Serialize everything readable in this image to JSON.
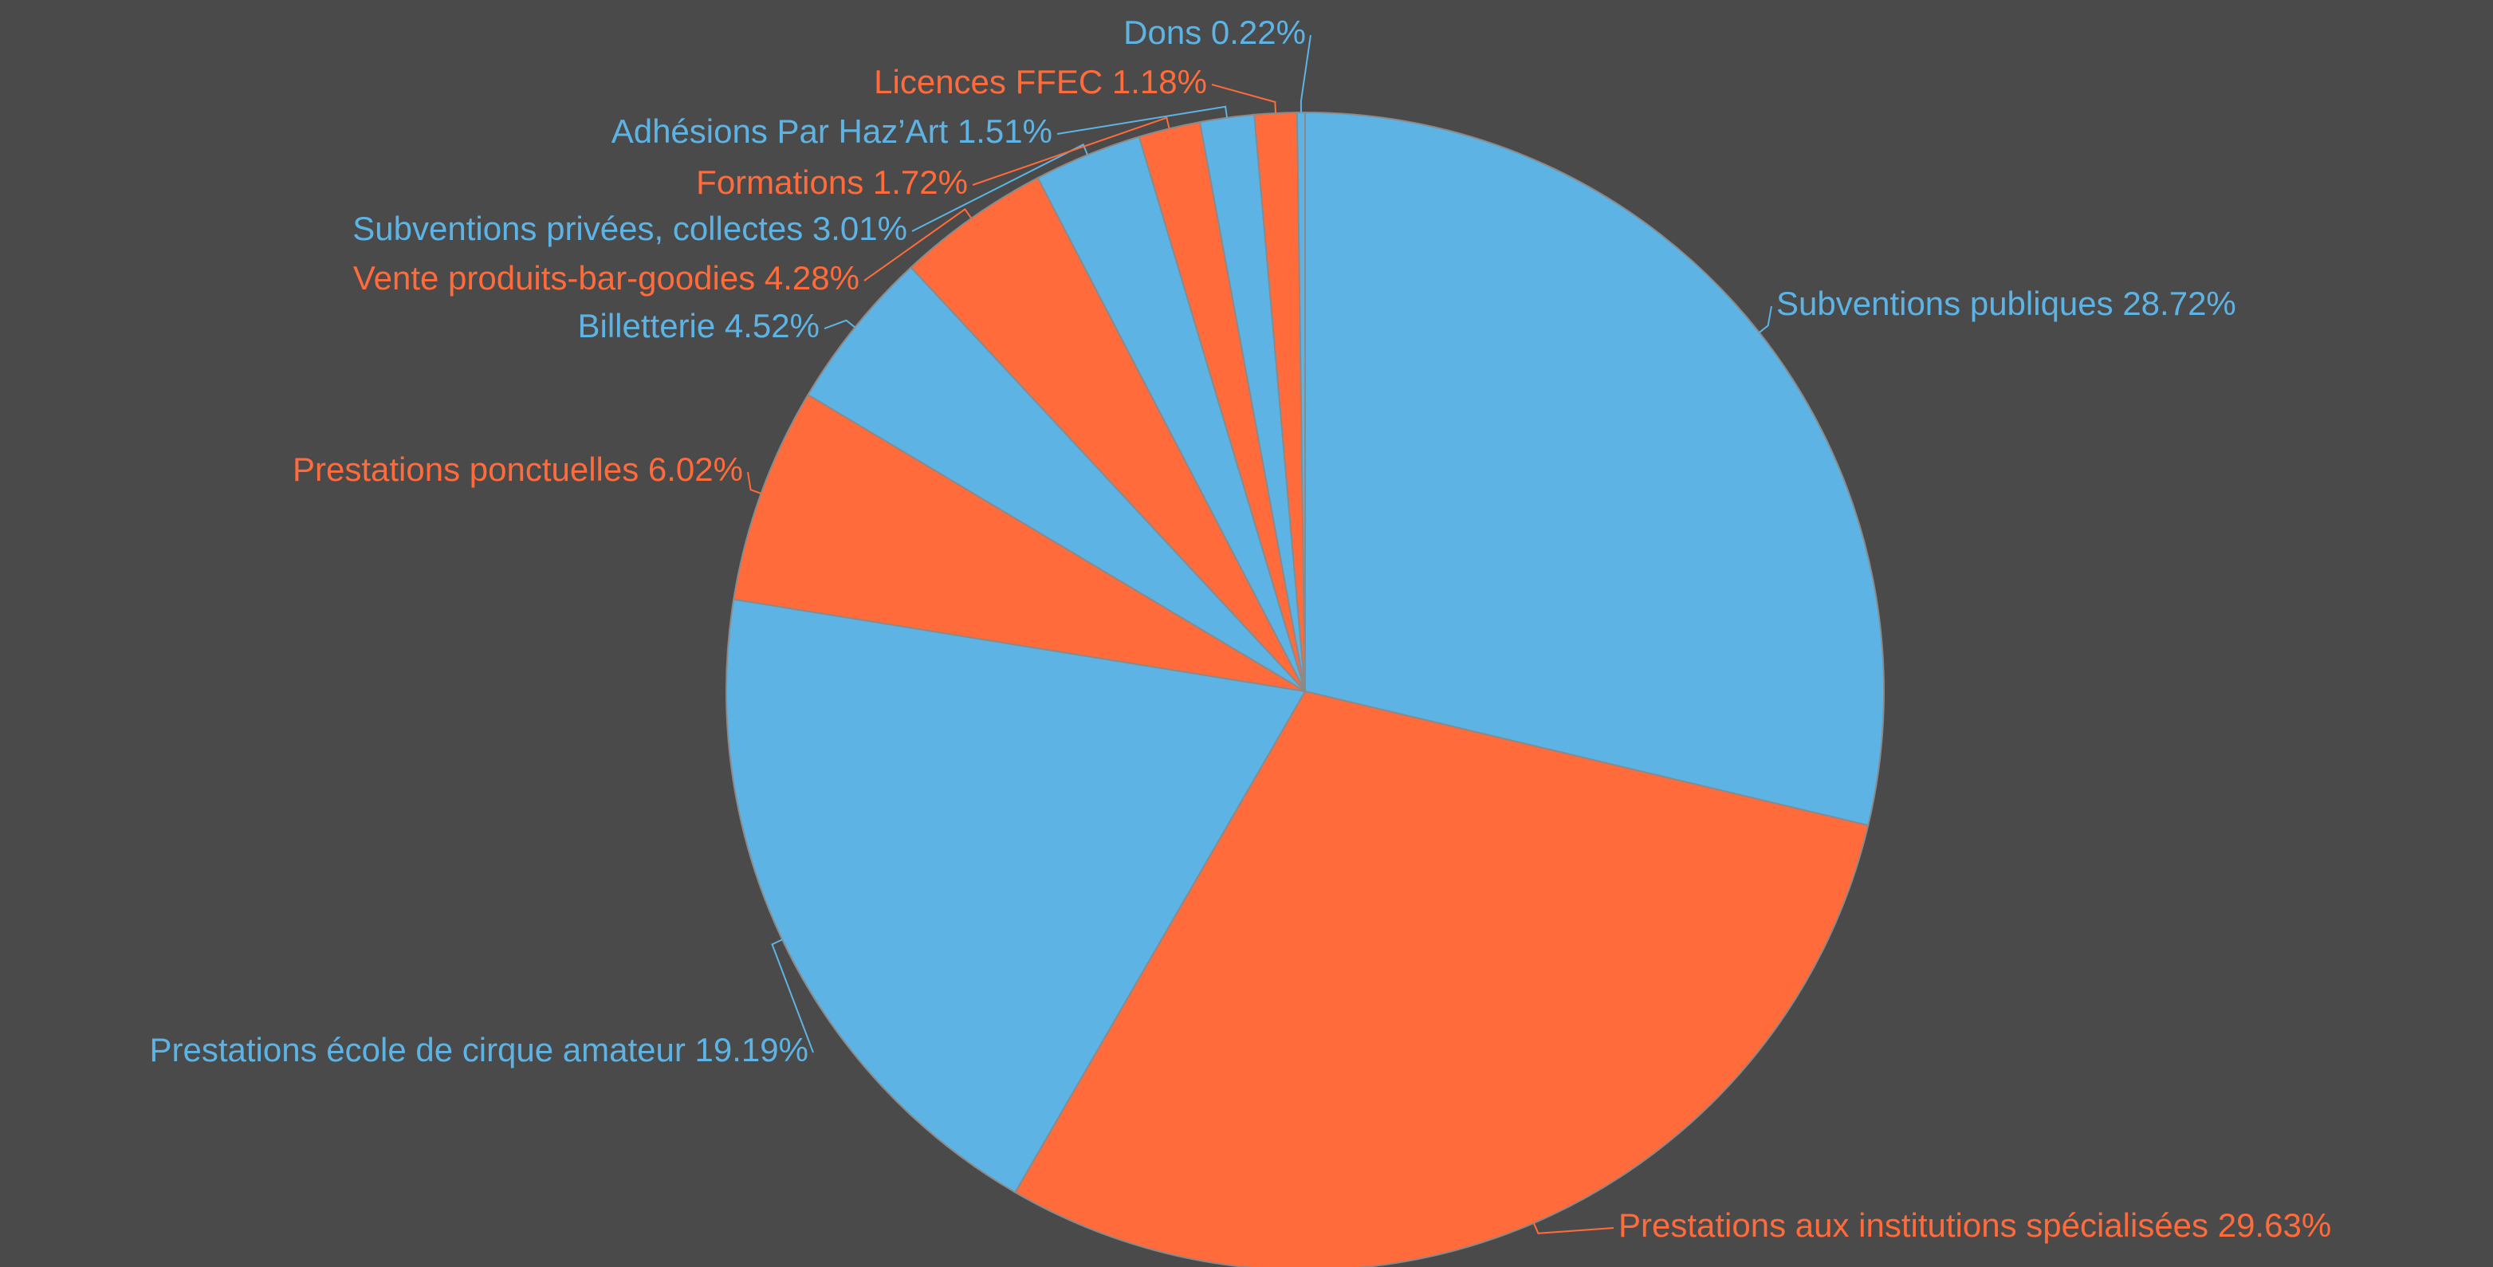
{
  "chart_data": {
    "type": "pie",
    "categories": [
      "Subventions publiques",
      "Prestations aux institutions spécialisées",
      "Prestations école de cirque amateur",
      "Prestations ponctuelles",
      "Billetterie",
      "Vente produits-bar-goodies",
      "Subventions privées, collectes",
      "Formations",
      "Adhésions Par Haz’Art",
      "Licences FFEC",
      "Dons"
    ],
    "values": [
      28.72,
      29.63,
      19.19,
      6.02,
      4.52,
      4.28,
      3.01,
      1.72,
      1.51,
      1.18,
      0.22
    ],
    "value_labels": [
      "28.72%",
      "29.63%",
      "19.19%",
      "6.02%",
      "4.52%",
      "4.28%",
      "3.01%",
      "1.72%",
      "1.51%",
      "1.18%",
      "0.22%"
    ],
    "colors": [
      "#5db4e4",
      "#ff6b3a",
      "#5db4e4",
      "#ff6b3a",
      "#5db4e4",
      "#ff6b3a",
      "#5db4e4",
      "#ff6b3a",
      "#5db4e4",
      "#ff6b3a",
      "#5db4e4"
    ]
  }
}
